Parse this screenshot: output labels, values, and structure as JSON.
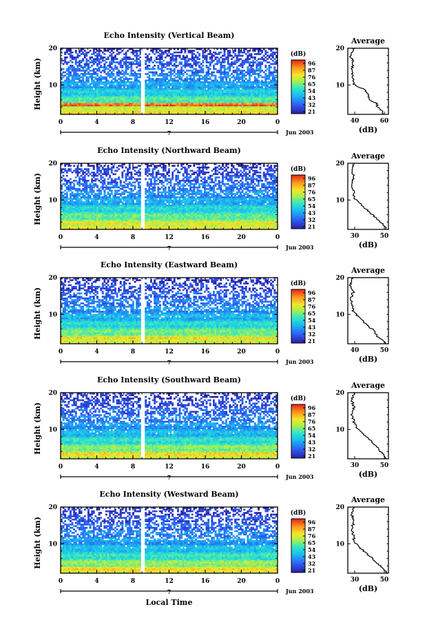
{
  "shared": {
    "colorbar_unit": "(dB)",
    "colorbar_ticks": [
      "96",
      "87",
      "76",
      "65",
      "54",
      "43",
      "32",
      "21"
    ],
    "y_label": "Height (km)",
    "x_ticks": [
      "0",
      "4",
      "8",
      "12",
      "16",
      "20",
      "0"
    ],
    "day_label": "7",
    "month_label": "Jun 2003",
    "x_label": "Local Time",
    "avg_title": "Average",
    "avg_xlabel": "(dB)"
  },
  "chart_data": [
    {
      "type": "heatmap",
      "title": "Echo Intensity (Vertical Beam)",
      "x": {
        "range": [
          0,
          24
        ],
        "ticks": [
          0,
          4,
          8,
          12,
          16,
          20,
          24
        ],
        "unit": "hour"
      },
      "y": {
        "range": [
          2,
          20
        ],
        "ticks": [
          10,
          20
        ],
        "unit": "km"
      },
      "data_gap_hours": [
        8.9,
        9.3
      ],
      "colorbar": {
        "unit": "dB",
        "range": [
          21,
          96
        ]
      },
      "average_profile": {
        "xlim": [
          35,
          65
        ],
        "xticks": [
          "40",
          "60"
        ],
        "height_km": [
          2,
          3,
          4,
          5,
          6,
          7,
          8,
          9,
          10,
          11,
          12,
          14,
          16,
          18,
          20
        ],
        "db": [
          62,
          60,
          57,
          56,
          51,
          50,
          49,
          46,
          40,
          39,
          39,
          38,
          39,
          37,
          40
        ]
      }
    },
    {
      "type": "heatmap",
      "title": "Echo Intensity (Northward Beam)",
      "x": {
        "range": [
          0,
          24
        ],
        "ticks": [
          0,
          4,
          8,
          12,
          16,
          20,
          24
        ],
        "unit": "hour"
      },
      "y": {
        "range": [
          2,
          20
        ],
        "ticks": [
          10,
          20
        ],
        "unit": "km"
      },
      "data_gap_hours": [
        8.9,
        9.3
      ],
      "colorbar": {
        "unit": "dB",
        "range": [
          21,
          96
        ]
      },
      "average_profile": {
        "xlim": [
          30,
          50
        ],
        "xticks": [
          "30",
          "50"
        ],
        "height_km": [
          2,
          3,
          4,
          5,
          6,
          7,
          8,
          9,
          10,
          11,
          12,
          14,
          16,
          18,
          20
        ],
        "db": [
          49,
          48,
          46,
          44,
          42,
          40,
          38,
          36,
          34,
          33,
          33,
          32,
          33,
          32,
          33
        ]
      }
    },
    {
      "type": "heatmap",
      "title": "Echo Intensity (Eastward Beam)",
      "x": {
        "range": [
          0,
          24
        ],
        "ticks": [
          0,
          4,
          8,
          12,
          16,
          20,
          24
        ],
        "unit": "hour"
      },
      "y": {
        "range": [
          2,
          20
        ],
        "ticks": [
          10,
          20
        ],
        "unit": "km"
      },
      "data_gap_hours": [
        8.9,
        9.3
      ],
      "colorbar": {
        "unit": "dB",
        "range": [
          21,
          96
        ]
      },
      "average_profile": {
        "xlim": [
          35,
          50
        ],
        "xticks": [
          "40",
          "50"
        ],
        "height_km": [
          2,
          3,
          4,
          5,
          6,
          7,
          8,
          9,
          10,
          11,
          12,
          14,
          16,
          18,
          20
        ],
        "db": [
          49,
          48,
          46,
          45,
          44,
          42,
          41,
          40,
          38,
          37,
          37,
          36,
          37,
          36,
          37
        ]
      }
    },
    {
      "type": "heatmap",
      "title": "Echo Intensity (Southward Beam)",
      "x": {
        "range": [
          0,
          24
        ],
        "ticks": [
          0,
          4,
          8,
          12,
          16,
          20,
          24
        ],
        "unit": "hour"
      },
      "y": {
        "range": [
          2,
          20
        ],
        "ticks": [
          10,
          20
        ],
        "unit": "km"
      },
      "data_gap_hours": [
        8.9,
        9.3
      ],
      "colorbar": {
        "unit": "dB",
        "range": [
          21,
          96
        ]
      },
      "average_profile": {
        "xlim": [
          30,
          50
        ],
        "xticks": [
          "30",
          "50"
        ],
        "height_km": [
          2,
          3,
          4,
          5,
          6,
          7,
          8,
          9,
          10,
          11,
          12,
          14,
          16,
          18,
          20
        ],
        "db": [
          49,
          48,
          46,
          45,
          43,
          41,
          39,
          37,
          35,
          34,
          33,
          32,
          33,
          32,
          33
        ]
      }
    },
    {
      "type": "heatmap",
      "title": "Echo Intensity (Westward Beam)",
      "x": {
        "range": [
          0,
          24
        ],
        "ticks": [
          0,
          4,
          8,
          12,
          16,
          20,
          24
        ],
        "unit": "hour"
      },
      "y": {
        "range": [
          2,
          20
        ],
        "ticks": [
          10,
          20
        ],
        "unit": "km"
      },
      "data_gap_hours": [
        8.9,
        9.3
      ],
      "colorbar": {
        "unit": "dB",
        "range": [
          21,
          96
        ]
      },
      "average_profile": {
        "xlim": [
          30,
          50
        ],
        "xticks": [
          "30",
          "50"
        ],
        "height_km": [
          2,
          3,
          4,
          5,
          6,
          7,
          8,
          9,
          10,
          11,
          12,
          14,
          16,
          18,
          20
        ],
        "db": [
          49,
          48,
          46,
          44,
          42,
          40,
          38,
          36,
          34,
          33,
          33,
          32,
          33,
          32,
          33
        ]
      }
    }
  ]
}
